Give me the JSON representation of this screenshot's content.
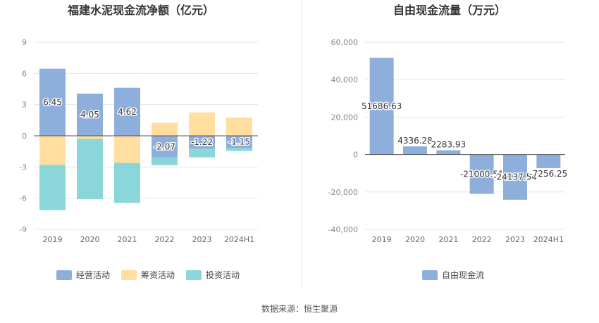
{
  "source_text": "数据来源：恒生聚源",
  "chart_data": [
    {
      "type": "bar",
      "stacked": true,
      "title": "福建水泥现金流净额（亿元）",
      "categories": [
        "2019",
        "2020",
        "2021",
        "2022",
        "2023",
        "2024H1"
      ],
      "ylim": [
        -9,
        9
      ],
      "yticks": [
        9,
        6,
        3,
        0,
        -3,
        -6,
        -9
      ],
      "ytick_labels": [
        "9",
        "6",
        "3",
        "0",
        "-3",
        "-6",
        "-9"
      ],
      "legend_position": "bottom-center",
      "series": [
        {
          "name": "经营活动",
          "color": "#8eaedc",
          "values": [
            6.45,
            4.05,
            4.62,
            -2.07,
            -1.22,
            -1.15
          ],
          "labels": [
            "6.45",
            "4.05",
            "4.62",
            "-2.07",
            "-1.22",
            "-1.15"
          ]
        },
        {
          "name": "筹资活动",
          "color": "#ffdea0",
          "values": [
            -2.8,
            -0.3,
            -2.6,
            1.25,
            2.25,
            1.75
          ]
        },
        {
          "name": "投资活动",
          "color": "#8ad6da",
          "values": [
            -4.35,
            -5.8,
            -3.85,
            -0.75,
            -0.85,
            -0.3
          ]
        }
      ]
    },
    {
      "type": "bar",
      "title": "自由现金流量（万元）",
      "categories": [
        "2019",
        "2020",
        "2021",
        "2022",
        "2023",
        "2024H1"
      ],
      "ylim": [
        -40000,
        60000
      ],
      "yticks": [
        60000,
        40000,
        20000,
        0,
        -20000,
        -40000
      ],
      "ytick_labels": [
        "60,000",
        "40,000",
        "20,000",
        "0",
        "-20,000",
        "-40,000"
      ],
      "legend_position": "bottom-center",
      "series": [
        {
          "name": "自由现金流",
          "color": "#8eaedc",
          "values": [
            51686.63,
            4336.28,
            2283.93,
            -21000.51,
            -24137.54,
            -7256.25
          ],
          "labels": [
            "51686.63",
            "4336.28",
            "2283.93",
            "-21000.51",
            "-24137.54",
            "-7256.25"
          ]
        }
      ]
    }
  ]
}
